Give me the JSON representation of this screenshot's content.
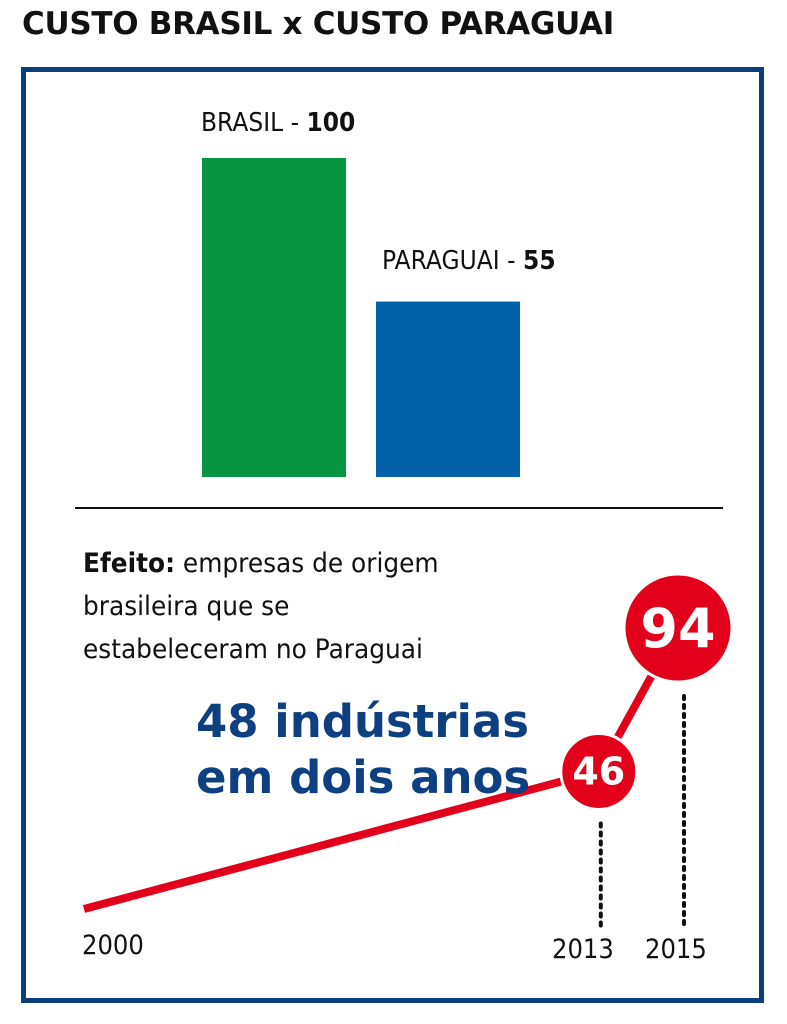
{
  "title": "CUSTO BRASIL x CUSTO PARAGUAI",
  "chart_data": [
    {
      "type": "bar",
      "categories": [
        "BRASIL",
        "PARAGUAI"
      ],
      "values": [
        100,
        55
      ],
      "labels": [
        {
          "name": "BRASIL",
          "sep": " - ",
          "value": "100"
        },
        {
          "name": "PARAGUAI",
          "sep": " - ",
          "value": "55"
        }
      ],
      "colors": [
        "#079542",
        "#0061a8"
      ],
      "ylim": [
        0,
        100
      ]
    },
    {
      "type": "line",
      "x": [
        2000,
        2013,
        2015
      ],
      "values": [
        0,
        46,
        94
      ],
      "x_labels": [
        "2000",
        "2013",
        "2015"
      ],
      "point_labels": [
        "",
        "46",
        "94"
      ],
      "color": "#e2001a"
    }
  ],
  "effect": {
    "label": "Efeito:",
    "line1": " empresas de origem",
    "line2": "brasileira que se",
    "line3": "estabeleceram no Paraguai"
  },
  "highlight": {
    "line1": "48 indústrias",
    "line2": "em dois anos"
  },
  "colors": {
    "frame": "#0d3e7c",
    "highlight": "#0e3f80",
    "line": "#e2001a"
  }
}
